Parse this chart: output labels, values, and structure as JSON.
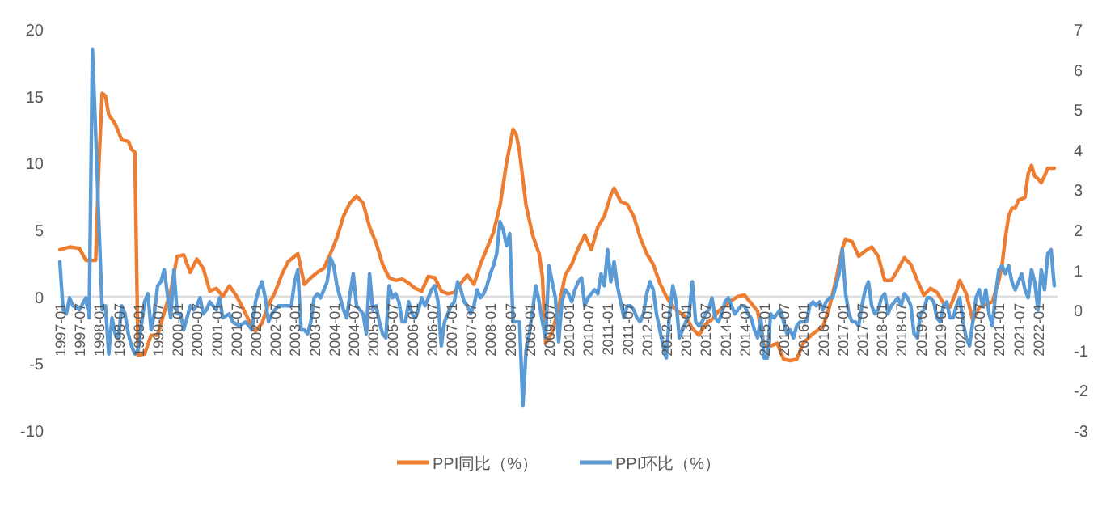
{
  "chart_data": {
    "type": "line",
    "xlim": [
      "1997-01",
      "2022-07"
    ],
    "xticks": [
      "1997-01",
      "1997-07",
      "1998-01",
      "1998-07",
      "1999-01",
      "1999-07",
      "2000-01",
      "2000-07",
      "2001-01",
      "2001-07",
      "2002-01",
      "2002-07",
      "2003-01",
      "2003-07",
      "2004-01",
      "2004-07",
      "2005-01",
      "2005-07",
      "2006-01",
      "2006-07",
      "2007-01",
      "2007-07",
      "2008-01",
      "2008-07",
      "2009-01",
      "2009-07",
      "2010-01",
      "2010-07",
      "2011-01",
      "2011-07",
      "2012-01",
      "2012-07",
      "2013-01",
      "2013-07",
      "2014-01",
      "2014-07",
      "2015-01",
      "2015-07",
      "2016-01",
      "2016-07",
      "2017-01",
      "2017-07",
      "2018-01",
      "2018-07",
      "2019-01",
      "2019-07",
      "2020-01",
      "2020-07",
      "2021-01",
      "2021-07",
      "2022-01"
    ],
    "ylim": [
      -10,
      20
    ],
    "yticks": [
      -10,
      -5,
      0,
      5,
      10,
      15,
      20
    ],
    "y2lim": [
      -3,
      7
    ],
    "y2ticks": [
      -3,
      -2,
      -1,
      0,
      1,
      2,
      3,
      4,
      5,
      6,
      7
    ],
    "legend": "bottom",
    "marker": "none",
    "line_style": "solid",
    "series": [
      {
        "name": "PPI同比（%）",
        "color": "#ed7d31",
        "x": [
          "1997-01",
          "1997-04",
          "1997-07",
          "1997-09",
          "1997-12",
          "1998-01",
          "1998-02",
          "1998-03",
          "1998-04",
          "1998-06",
          "1998-08",
          "1998-10",
          "1998-11",
          "1998-12",
          "1999-01",
          "1999-03",
          "1999-05",
          "1999-07",
          "1999-09",
          "1999-11",
          "2000-01",
          "2000-03",
          "2000-05",
          "2000-07",
          "2000-09",
          "2000-11",
          "2001-01",
          "2001-03",
          "2001-05",
          "2001-07",
          "2001-09",
          "2001-11",
          "2002-01",
          "2002-03",
          "2002-05",
          "2002-07",
          "2002-09",
          "2002-11",
          "2003-02",
          "2003-04",
          "2003-06",
          "2003-08",
          "2003-10",
          "2003-12",
          "2004-02",
          "2004-04",
          "2004-06",
          "2004-08",
          "2004-10",
          "2004-12",
          "2005-02",
          "2005-04",
          "2005-06",
          "2005-08",
          "2005-10",
          "2005-12",
          "2006-02",
          "2006-04",
          "2006-06",
          "2006-08",
          "2006-10",
          "2006-12",
          "2007-02",
          "2007-04",
          "2007-06",
          "2007-08",
          "2007-10",
          "2007-12",
          "2008-02",
          "2008-04",
          "2008-06",
          "2008-08",
          "2008-09",
          "2008-10",
          "2008-12",
          "2009-02",
          "2009-04",
          "2009-05",
          "2009-06",
          "2009-08",
          "2009-10",
          "2009-12",
          "2010-02",
          "2010-04",
          "2010-06",
          "2010-08",
          "2010-10",
          "2010-12",
          "2011-02",
          "2011-03",
          "2011-05",
          "2011-07",
          "2011-09",
          "2011-11",
          "2012-01",
          "2012-03",
          "2012-05",
          "2012-07",
          "2012-09",
          "2012-11",
          "2013-01",
          "2013-03",
          "2013-05",
          "2013-07",
          "2013-09",
          "2013-11",
          "2014-01",
          "2014-03",
          "2014-05",
          "2014-07",
          "2014-09",
          "2014-11",
          "2015-01",
          "2015-03",
          "2015-05",
          "2015-07",
          "2015-09",
          "2015-11",
          "2016-01",
          "2016-03",
          "2016-05",
          "2016-07",
          "2016-09",
          "2016-11",
          "2017-01",
          "2017-02",
          "2017-04",
          "2017-06",
          "2017-08",
          "2017-10",
          "2017-12",
          "2018-02",
          "2018-04",
          "2018-06",
          "2018-08",
          "2018-10",
          "2018-12",
          "2019-02",
          "2019-04",
          "2019-06",
          "2019-08",
          "2019-10",
          "2019-12",
          "2020-01",
          "2020-03",
          "2020-05",
          "2020-07",
          "2020-09",
          "2020-11",
          "2021-01",
          "2021-02",
          "2021-03",
          "2021-04",
          "2021-05",
          "2021-06",
          "2021-07",
          "2021-09",
          "2021-10",
          "2021-11",
          "2021-12",
          "2022-01",
          "2022-02",
          "2022-03",
          "2022-04",
          "2022-05",
          "2022-06"
        ],
        "values": [
          3.5,
          3.7,
          3.6,
          2.7,
          2.7,
          10,
          15.2,
          15.0,
          13.6,
          12.9,
          11.7,
          11.6,
          11.0,
          10.8,
          -4.4,
          -4.3,
          -2.9,
          -2.9,
          -1.2,
          0.4,
          3.0,
          3.1,
          1.8,
          2.8,
          2.1,
          0.4,
          0.6,
          0,
          0.8,
          0.1,
          -0.8,
          -1.8,
          -2.6,
          -2.0,
          -0.6,
          0.3,
          1.6,
          2.6,
          3.2,
          0.9,
          1.4,
          1.8,
          2.1,
          3.2,
          4.4,
          6.0,
          7.0,
          7.5,
          7.0,
          5.2,
          4.0,
          2.4,
          1.4,
          1.2,
          1.3,
          1.0,
          0.6,
          0.4,
          1.5,
          1.4,
          0.4,
          0.2,
          0.3,
          1.0,
          1.6,
          0.9,
          2.4,
          3.6,
          4.8,
          6.8,
          10,
          12.5,
          12.1,
          10.8,
          6.8,
          4.6,
          3.2,
          1.5,
          -3.5,
          -2.7,
          -0.8,
          1.6,
          2.4,
          3.6,
          4.6,
          3.5,
          5.2,
          6.0,
          7.6,
          8.1,
          7.1,
          6.9,
          6.0,
          4.4,
          3.2,
          2.4,
          1.0,
          0,
          -0.8,
          -1.2,
          -1.5,
          -2.4,
          -2.9,
          -2.1,
          -1.7,
          -1.1,
          -0.7,
          -0.3,
          0,
          0.1,
          -0.5,
          -1.1,
          -3.7,
          -3.7,
          -3.5,
          -4.7,
          -4.8,
          -4.7,
          -3.5,
          -3.0,
          -2.6,
          -2.3,
          -0.8,
          1.2,
          3.6,
          4.3,
          4.1,
          3.0,
          3.4,
          3.7,
          3.0,
          1.2,
          1.2,
          2.0,
          2.9,
          2.4,
          1.2,
          0.1,
          0.6,
          0.3,
          -0.5,
          -0.8,
          0.4,
          1.2,
          0.2,
          -1.8,
          -0.8,
          -0.6,
          -0.4,
          1.2,
          2.4,
          4.4,
          6.0,
          6.6,
          6.6,
          7.2,
          7.4,
          9.2,
          9.8,
          9.0,
          8.8,
          8.5,
          9.0,
          9.6,
          9.6,
          9.6
        ]
      },
      {
        "name": "PPI环比（%）",
        "color": "#5b9bd5",
        "axis": "y2",
        "x": [
          "1997-01",
          "1997-02",
          "1997-03",
          "1997-04",
          "1997-05",
          "1997-07",
          "1997-09",
          "1997-10",
          "1997-11",
          "1997-12",
          "1998-01",
          "1998-02",
          "1998-03",
          "1998-04",
          "1998-05",
          "1998-06",
          "1998-07",
          "1998-08",
          "1998-09",
          "1998-10",
          "1998-11",
          "1998-12",
          "1999-01",
          "1999-03",
          "1999-04",
          "1999-05",
          "1999-06",
          "1999-07",
          "1999-08",
          "1999-09",
          "1999-10",
          "1999-11",
          "1999-12",
          "2000-01",
          "2000-02",
          "2000-03",
          "2000-04",
          "2000-05",
          "2000-06",
          "2000-07",
          "2000-08",
          "2000-09",
          "2000-10",
          "2000-11",
          "2001-01",
          "2001-02",
          "2001-03",
          "2001-05",
          "2001-06",
          "2001-08",
          "2001-10",
          "2001-12",
          "2002-01",
          "2002-02",
          "2002-03",
          "2002-04",
          "2002-05",
          "2002-06",
          "2002-08",
          "2002-10",
          "2002-12",
          "2003-01",
          "2003-02",
          "2003-03",
          "2003-04",
          "2003-05",
          "2003-06",
          "2003-07",
          "2003-08",
          "2003-09",
          "2003-10",
          "2003-11",
          "2003-12",
          "2004-01",
          "2004-02",
          "2004-03",
          "2004-04",
          "2004-05",
          "2004-06",
          "2004-07",
          "2004-08",
          "2004-09",
          "2004-10",
          "2004-11",
          "2004-12",
          "2005-01",
          "2005-02",
          "2005-03",
          "2005-04",
          "2005-05",
          "2005-06",
          "2005-07",
          "2005-08",
          "2005-09",
          "2005-10",
          "2005-11",
          "2005-12",
          "2006-01",
          "2006-02",
          "2006-03",
          "2006-04",
          "2006-05",
          "2006-06",
          "2006-07",
          "2006-08",
          "2006-09",
          "2006-10",
          "2006-11",
          "2006-12",
          "2007-01",
          "2007-02",
          "2007-03",
          "2007-04",
          "2007-05",
          "2007-06",
          "2007-07",
          "2007-08",
          "2007-09",
          "2007-10",
          "2007-11",
          "2007-12",
          "2008-01",
          "2008-02",
          "2008-03",
          "2008-04",
          "2008-05",
          "2008-06",
          "2008-07",
          "2008-08",
          "2008-09",
          "2008-10",
          "2008-11",
          "2008-12",
          "2009-01",
          "2009-02",
          "2009-03",
          "2009-04",
          "2009-05",
          "2009-06",
          "2009-07",
          "2009-08",
          "2009-09",
          "2009-10",
          "2009-11",
          "2009-12",
          "2010-01",
          "2010-02",
          "2010-03",
          "2010-04",
          "2010-05",
          "2010-06",
          "2010-07",
          "2010-08",
          "2010-09",
          "2010-10",
          "2010-11",
          "2010-12",
          "2011-01",
          "2011-02",
          "2011-03",
          "2011-04",
          "2011-05",
          "2011-06",
          "2011-07",
          "2011-08",
          "2011-09",
          "2011-10",
          "2011-11",
          "2011-12",
          "2012-01",
          "2012-02",
          "2012-03",
          "2012-04",
          "2012-05",
          "2012-06",
          "2012-07",
          "2012-08",
          "2012-09",
          "2012-10",
          "2012-11",
          "2012-12",
          "2013-01",
          "2013-02",
          "2013-03",
          "2013-04",
          "2013-05",
          "2013-06",
          "2013-07",
          "2013-08",
          "2013-09",
          "2013-10",
          "2013-11",
          "2013-12",
          "2014-01",
          "2014-02",
          "2014-03",
          "2014-04",
          "2014-05",
          "2014-06",
          "2014-07",
          "2014-08",
          "2014-09",
          "2014-10",
          "2014-11",
          "2014-12",
          "2015-01",
          "2015-02",
          "2015-03",
          "2015-04",
          "2015-05",
          "2015-06",
          "2015-07",
          "2015-08",
          "2015-09",
          "2015-10",
          "2015-11",
          "2015-12",
          "2016-01",
          "2016-02",
          "2016-03",
          "2016-04",
          "2016-05",
          "2016-06",
          "2016-07",
          "2016-08",
          "2016-09",
          "2016-10",
          "2016-11",
          "2016-12",
          "2017-01",
          "2017-02",
          "2017-03",
          "2017-04",
          "2017-05",
          "2017-06",
          "2017-07",
          "2017-08",
          "2017-09",
          "2017-10",
          "2017-11",
          "2017-12",
          "2018-01",
          "2018-02",
          "2018-03",
          "2018-04",
          "2018-05",
          "2018-06",
          "2018-07",
          "2018-08",
          "2018-09",
          "2018-10",
          "2018-11",
          "2018-12",
          "2019-01",
          "2019-02",
          "2019-03",
          "2019-04",
          "2019-05",
          "2019-06",
          "2019-07",
          "2019-08",
          "2019-09",
          "2019-10",
          "2019-11",
          "2019-12",
          "2020-01",
          "2020-02",
          "2020-03",
          "2020-04",
          "2020-05",
          "2020-06",
          "2020-07",
          "2020-08",
          "2020-09",
          "2020-10",
          "2020-11",
          "2020-12",
          "2021-01",
          "2021-02",
          "2021-03",
          "2021-04",
          "2021-05",
          "2021-06",
          "2021-07",
          "2021-08",
          "2021-09",
          "2021-10",
          "2021-11",
          "2021-12",
          "2022-01",
          "2022-02",
          "2022-03",
          "2022-04",
          "2022-05",
          "2022-06"
        ],
        "values": [
          1.2,
          0,
          -0.1,
          0.3,
          0.1,
          0,
          0.3,
          -0.2,
          6.5,
          4.4,
          2.1,
          0,
          0.1,
          -1.1,
          -0.2,
          -0.6,
          -0.7,
          0.1,
          -0.1,
          -0.6,
          -0.9,
          -1.1,
          -1.0,
          0.2,
          0.4,
          -0.5,
          -0.1,
          0.6,
          0.7,
          1.0,
          0.4,
          -0.2,
          1.0,
          -0.1,
          -0.1,
          -0.5,
          -0.2,
          0.1,
          0,
          0.1,
          0.3,
          -0.1,
          0,
          0.2,
          0,
          0.3,
          -0.2,
          -0.1,
          -0.3,
          -0.4,
          -0.3,
          -0.5,
          0.2,
          0.5,
          0.7,
          0.3,
          -0.3,
          -0.1,
          0.1,
          0.1,
          0.1,
          0.7,
          1.0,
          -0.5,
          -0.5,
          -0.6,
          -0.3,
          0.3,
          0.4,
          0.3,
          0.5,
          0.7,
          1.3,
          1.1,
          0.6,
          0.3,
          0,
          -0.2,
          0.4,
          0.9,
          0.1,
          0,
          -0.1,
          -0.6,
          0.9,
          0,
          0.1,
          -0.3,
          -0.6,
          -0.7,
          0.6,
          0.3,
          0.4,
          0.2,
          -0.3,
          -0.3,
          0.2,
          -0.1,
          -0.2,
          0,
          0.3,
          0.1,
          0.3,
          0.5,
          0.6,
          0.2,
          -0.9,
          -0.3,
          -0.1,
          0.1,
          0.2,
          0.7,
          0.5,
          0.2,
          0.1,
          -0.1,
          0.1,
          0.5,
          0.3,
          0.4,
          0.6,
          0.9,
          1.1,
          1.4,
          2.2,
          2.0,
          1.6,
          1.9,
          -0.3,
          -0.3,
          -0.3,
          -2.4,
          -1.0,
          -0.6,
          0,
          0.6,
          0.2,
          -0.3,
          -0.7,
          1.1,
          0.7,
          0.3,
          -0.8,
          0.2,
          0.5,
          0.4,
          0.2,
          0.5,
          0.7,
          0.8,
          0.1,
          0.3,
          0.4,
          0.5,
          0.4,
          0.9,
          0.6,
          1.5,
          0.7,
          1.2,
          0.6,
          0.2,
          -0.2,
          0.1,
          0.1,
          0,
          -0.2,
          -0.3,
          -0.1,
          0.4,
          0.7,
          0.5,
          -0.1,
          -0.5,
          -0.9,
          -1.2,
          -0.1,
          0.6,
          0.2,
          -0.7,
          -0.5,
          -0.3,
          -0.1,
          0.7,
          -0.3,
          -0.4,
          -0.3,
          -0.1,
          0,
          0.3,
          -0.2,
          -0.3,
          -0.1,
          0.2,
          0.3,
          0.1,
          -0.1,
          0,
          0.1,
          0.1,
          -0.1,
          -0.2,
          -0.5,
          -0.7,
          -0.2,
          -1.2,
          -1.2,
          -0.1,
          -0.2,
          -0.1,
          0,
          -0.3,
          -0.6,
          -0.5,
          -0.7,
          -0.4,
          -0.3,
          -0.3,
          -0.3,
          0.1,
          0.2,
          0.1,
          0.2,
          0,
          0.2,
          0.3,
          0.3,
          0.6,
          0.9,
          1.5,
          0.4,
          -0.1,
          -0.3,
          -0.3,
          -0.4,
          0.1,
          0.5,
          0.7,
          0.1,
          -0.1,
          0,
          0.3,
          0.4,
          -0.1,
          0.1,
          0.2,
          0.3,
          0.1,
          0.4,
          0.3,
          0.1,
          -0.6,
          -0.7,
          -0.1,
          0,
          0.3,
          0.3,
          0.2,
          -0.2,
          -0.3,
          0.1,
          0.2,
          -0.2,
          -0.2,
          0.1,
          0.3,
          -0.3,
          -0.7,
          -0.9,
          -0.3,
          0.3,
          0.5,
          0.1,
          0.5,
          -0.1,
          -0.4,
          0.4,
          1.0,
          1.1,
          0.9,
          1.1,
          0.7,
          0.5,
          0.7,
          0.9,
          0.5,
          0.3,
          1.0,
          0.7,
          0,
          1.0,
          0.5,
          1.4,
          1.5,
          0.6
        ]
      }
    ]
  }
}
